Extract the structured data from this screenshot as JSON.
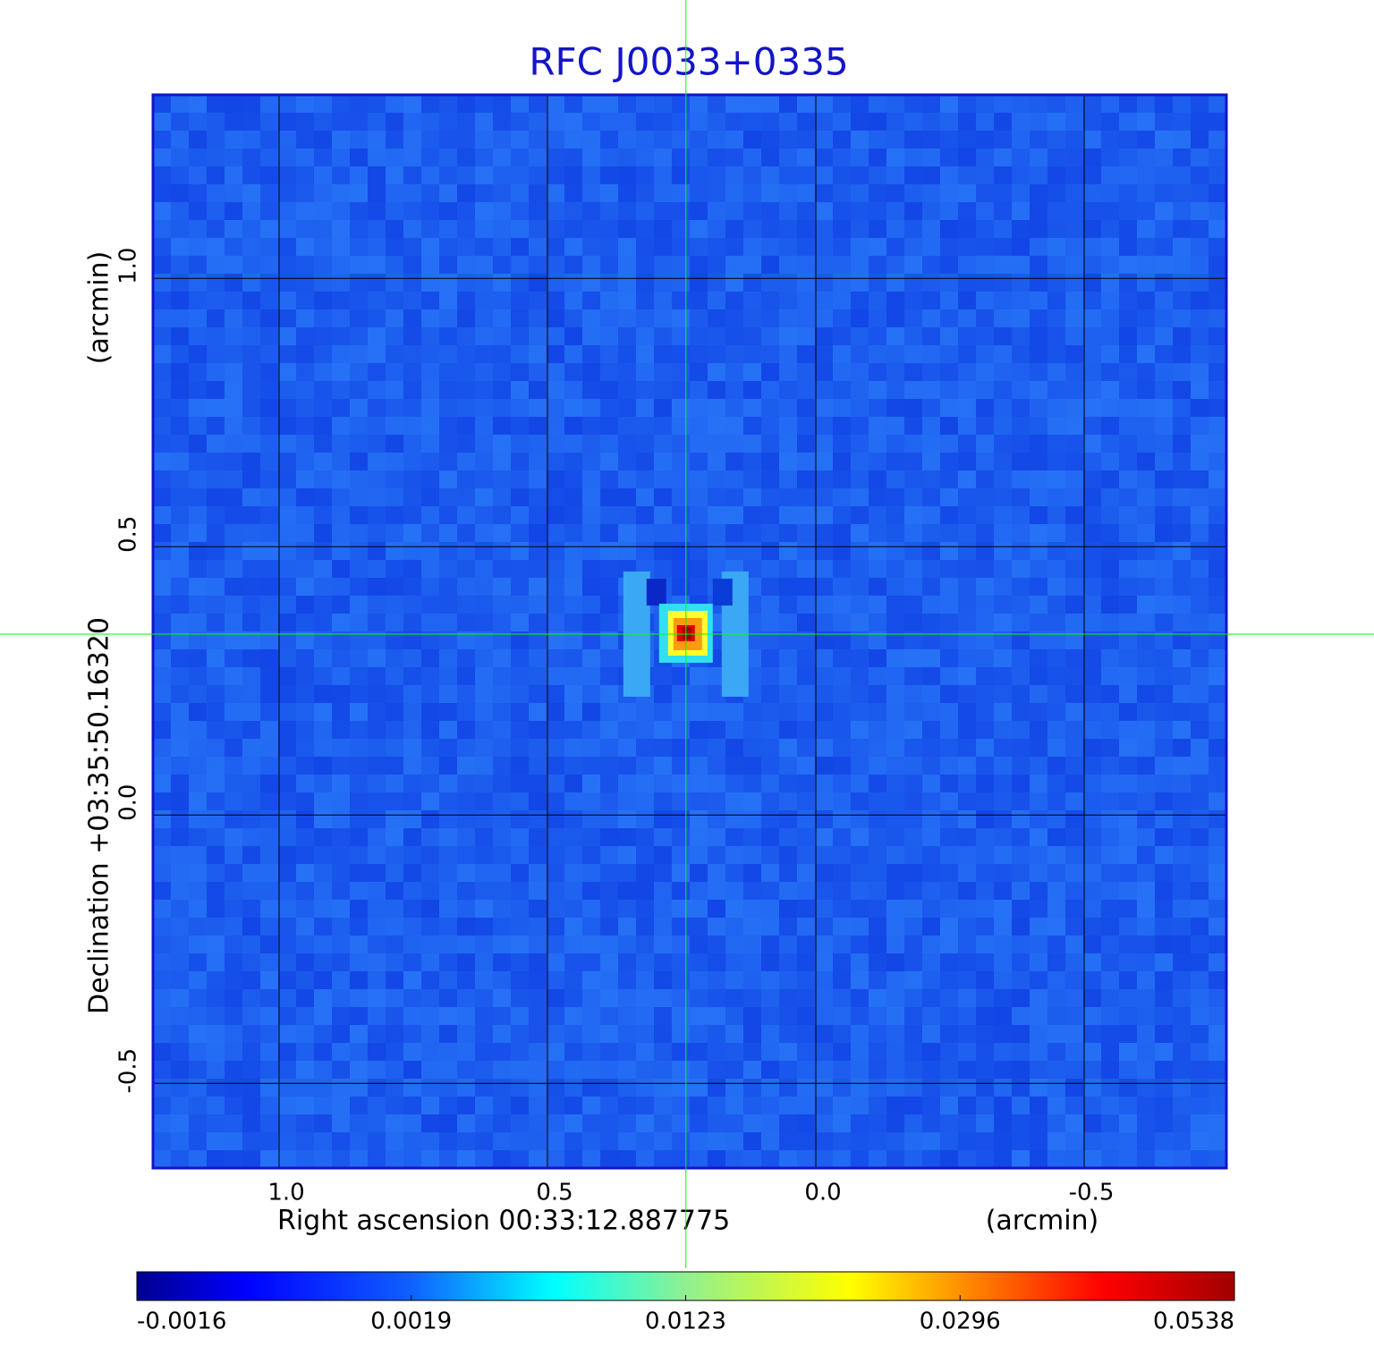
{
  "chart_data": {
    "type": "image",
    "title": "RFC J0033+0335",
    "xlabel": "Right ascension  00:33:12.887775",
    "xunit": "(arcmin)",
    "ylabel": "Declination  +03:35:50.16320",
    "yunit": "(arcmin)",
    "xlim": [
      1.235,
      -0.765
    ],
    "ylim": [
      -0.658,
      1.342
    ],
    "xticks": [
      {
        "value": 1,
        "label": "1.0"
      },
      0.5,
      {
        "value": 0,
        "label": "0.0"
      },
      -0.5
    ],
    "yticks": [
      {
        "value": 1,
        "label": "1.0"
      },
      0.5,
      {
        "value": 0,
        "label": "0.0"
      },
      -0.5
    ],
    "grid": true,
    "colormap": "jet",
    "colorbar_ticks": [
      -0.0016,
      0.0019,
      0.0123,
      0.0296,
      0.0538
    ],
    "crosshair": {
      "x": 0.242,
      "y": 0.337,
      "color": "#00ff00"
    }
  }
}
